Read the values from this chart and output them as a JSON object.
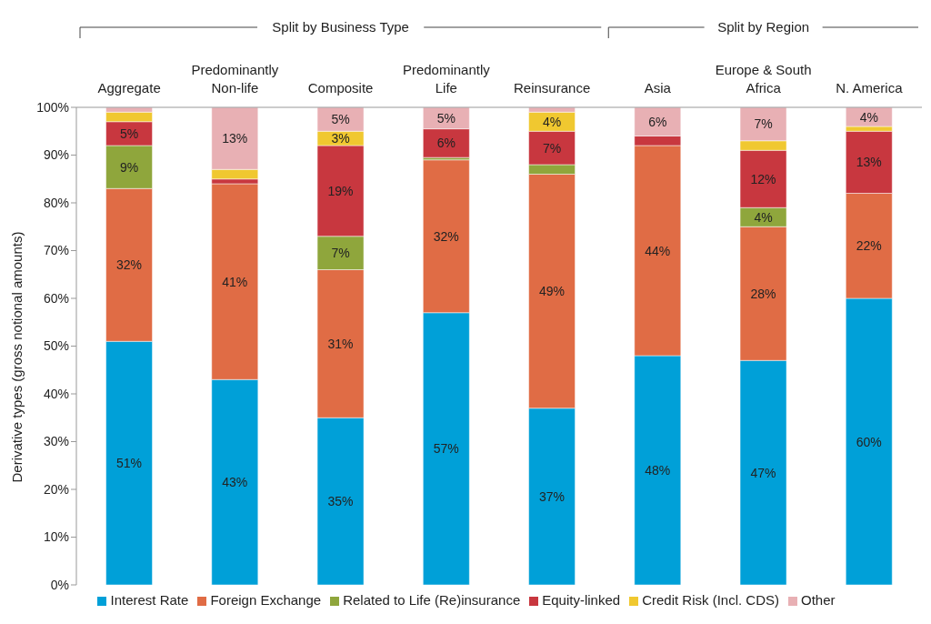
{
  "chart_data": {
    "type": "bar",
    "stacked": true,
    "ylabel": "Derivative types (gross notional amounts)",
    "annotations": [
      "Split by Business Type",
      "Split by Region"
    ],
    "categories": [
      "Aggregate",
      "Predominantly Non-life",
      "Composite",
      "Predominantly Life",
      "Reinsurance",
      "Asia",
      "Europe & South Africa",
      "N. America"
    ],
    "series": [
      {
        "name": "Interest Rate",
        "color": "#00a0d8",
        "values": [
          51,
          43,
          35,
          57,
          37,
          48,
          47,
          60
        ],
        "value_labels": [
          "51%",
          "43%",
          "35%",
          "57%",
          "37%",
          "48%",
          "47%",
          "60%"
        ]
      },
      {
        "name": "Foreign Exchange",
        "color": "#e06c45",
        "values": [
          32,
          41,
          31,
          32,
          49,
          44,
          28,
          22
        ],
        "value_labels": [
          "32%",
          "41%",
          "31%",
          "32%",
          "49%",
          "44%",
          "28%",
          "22%"
        ]
      },
      {
        "name": "Related to Life (Re)insurance",
        "color": "#8fa63c",
        "values": [
          9,
          0,
          7,
          0.5,
          2,
          0,
          4,
          0
        ],
        "value_labels": [
          "9%",
          null,
          "7%",
          null,
          null,
          null,
          "4%",
          null
        ]
      },
      {
        "name": "Equity-linked",
        "color": "#c8373f",
        "values": [
          5,
          1,
          19,
          6,
          7,
          2,
          12,
          13
        ],
        "value_labels": [
          "5%",
          null,
          "19%",
          "6%",
          "7%",
          null,
          "12%",
          "13%"
        ]
      },
      {
        "name": "Credit Risk (Incl. CDS)",
        "color": "#f0c830",
        "values": [
          2,
          2,
          3,
          0,
          4,
          0,
          2,
          1
        ],
        "value_labels": [
          null,
          null,
          "3%",
          null,
          "4%",
          null,
          null,
          null
        ]
      },
      {
        "name": "Other",
        "color": "#e8b0b4",
        "values": [
          1,
          13,
          5,
          4.5,
          1,
          6,
          7,
          4
        ],
        "value_labels": [
          null,
          "13%",
          "5%",
          "5%",
          null,
          "6%",
          "7%",
          "4%"
        ]
      }
    ],
    "ylim": [
      0,
      100
    ],
    "yticks": [
      {
        "value": 0,
        "label": "0%"
      },
      {
        "value": 10,
        "label": "10%"
      },
      {
        "value": 20,
        "label": "20%"
      },
      {
        "value": 30,
        "label": "30%"
      },
      {
        "value": 40,
        "label": "40%"
      },
      {
        "value": 50,
        "label": "50%"
      },
      {
        "value": 60,
        "label": "60%"
      },
      {
        "value": 70,
        "label": "70%"
      },
      {
        "value": 80,
        "label": "80%"
      },
      {
        "value": 90,
        "label": "90%"
      },
      {
        "value": 100,
        "label": "100%"
      }
    ],
    "grid": false,
    "legend": "bottom"
  }
}
